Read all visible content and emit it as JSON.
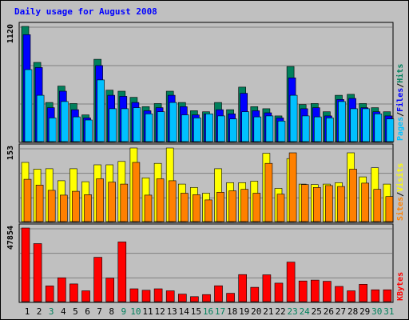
{
  "title": "Daily usage for August 2008",
  "colors": {
    "hits": "#00805c",
    "files": "#0000ff",
    "pages": "#00c0ff",
    "visits": "#ffff00",
    "sites": "#ff8000",
    "kbytes": "#ff0000",
    "weekday_label": "#000000",
    "weekend_label": "#00805c",
    "frame_bg": "#c0c0c0"
  },
  "legends": {
    "top": [
      {
        "text": "Pages",
        "color": "#00c0ff"
      },
      {
        "text": "/",
        "color": "#000000"
      },
      {
        "text": "Files",
        "color": "#0000ff"
      },
      {
        "text": "/",
        "color": "#000000"
      },
      {
        "text": "Hits",
        "color": "#00805c"
      }
    ],
    "mid": [
      {
        "text": "Sites",
        "color": "#ff8000"
      },
      {
        "text": "/",
        "color": "#000000"
      },
      {
        "text": "Visits",
        "color": "#ffff00"
      }
    ],
    "bot": [
      {
        "text": "KBytes",
        "color": "#ff0000"
      }
    ]
  },
  "chart_data": [
    {
      "type": "bar",
      "panel": "top",
      "ymax_label": "1120",
      "ylim": [
        0,
        1120
      ],
      "categories": [
        "1",
        "2",
        "3",
        "4",
        "5",
        "6",
        "7",
        "8",
        "9",
        "10",
        "11",
        "12",
        "13",
        "14",
        "15",
        "16",
        "17",
        "18",
        "19",
        "20",
        "21",
        "22",
        "23",
        "24",
        "25",
        "26",
        "27",
        "28",
        "29",
        "30",
        "31"
      ],
      "series": [
        {
          "name": "Hits",
          "values": [
            1120,
            770,
            380,
            540,
            370,
            260,
            800,
            500,
            490,
            430,
            340,
            370,
            490,
            380,
            300,
            290,
            380,
            310,
            530,
            340,
            320,
            250,
            730,
            360,
            370,
            290,
            450,
            460,
            370,
            330,
            290
          ]
        },
        {
          "name": "Files",
          "values": [
            1040,
            720,
            330,
            490,
            310,
            230,
            740,
            450,
            440,
            380,
            300,
            330,
            450,
            340,
            260,
            270,
            310,
            270,
            470,
            300,
            280,
            230,
            620,
            320,
            330,
            250,
            410,
            420,
            330,
            290,
            250
          ]
        },
        {
          "name": "Pages",
          "values": [
            700,
            450,
            230,
            390,
            240,
            210,
            600,
            320,
            320,
            330,
            270,
            290,
            380,
            260,
            230,
            270,
            250,
            220,
            290,
            240,
            250,
            200,
            450,
            250,
            240,
            230,
            390,
            320,
            320,
            270,
            220
          ]
        }
      ]
    },
    {
      "type": "bar",
      "panel": "mid",
      "ymax_label": "153",
      "ylim": [
        0,
        153
      ],
      "categories": [
        "1",
        "2",
        "3",
        "4",
        "5",
        "6",
        "7",
        "8",
        "9",
        "10",
        "11",
        "12",
        "13",
        "14",
        "15",
        "16",
        "17",
        "18",
        "19",
        "20",
        "21",
        "22",
        "23",
        "24",
        "25",
        "26",
        "27",
        "28",
        "29",
        "30",
        "31"
      ],
      "series": [
        {
          "name": "Visits",
          "values": [
            123,
            109,
            110,
            85,
            110,
            83,
            118,
            118,
            125,
            153,
            91,
            121,
            153,
            78,
            71,
            59,
            110,
            81,
            81,
            84,
            142,
            69,
            131,
            78,
            77,
            78,
            81,
            143,
            93,
            112,
            78
          ]
        },
        {
          "name": "Sites",
          "values": [
            88,
            76,
            65,
            55,
            63,
            56,
            89,
            82,
            78,
            123,
            55,
            89,
            85,
            59,
            56,
            45,
            61,
            64,
            67,
            59,
            121,
            57,
            143,
            77,
            71,
            75,
            73,
            109,
            80,
            67,
            52
          ]
        }
      ]
    },
    {
      "type": "bar",
      "panel": "bot",
      "ymax_label": "47854",
      "ylim": [
        0,
        47854
      ],
      "categories": [
        "1",
        "2",
        "3",
        "4",
        "5",
        "6",
        "7",
        "8",
        "9",
        "10",
        "11",
        "12",
        "13",
        "14",
        "15",
        "16",
        "17",
        "18",
        "19",
        "20",
        "21",
        "22",
        "23",
        "24",
        "25",
        "26",
        "27",
        "28",
        "29",
        "30",
        "31"
      ],
      "series": [
        {
          "name": "KBytes",
          "values": [
            47854,
            37700,
            10200,
            15500,
            11500,
            7000,
            28800,
            15300,
            38800,
            8300,
            7400,
            8300,
            7000,
            4900,
            3200,
            4600,
            10300,
            5400,
            17600,
            9300,
            17400,
            12000,
            25700,
            13400,
            14000,
            13200,
            9900,
            7000,
            11300,
            7700,
            7700
          ]
        }
      ]
    }
  ],
  "x_labels": [
    {
      "text": "1",
      "weekend": false
    },
    {
      "text": "2",
      "weekend": false
    },
    {
      "text": "3",
      "weekend": true
    },
    {
      "text": "4",
      "weekend": false
    },
    {
      "text": "5",
      "weekend": false
    },
    {
      "text": "6",
      "weekend": false
    },
    {
      "text": "7",
      "weekend": false
    },
    {
      "text": "8",
      "weekend": false
    },
    {
      "text": "9",
      "weekend": true
    },
    {
      "text": "10",
      "weekend": true
    },
    {
      "text": "11",
      "weekend": false
    },
    {
      "text": "12",
      "weekend": false
    },
    {
      "text": "13",
      "weekend": false
    },
    {
      "text": "14",
      "weekend": false
    },
    {
      "text": "15",
      "weekend": false
    },
    {
      "text": "16",
      "weekend": true
    },
    {
      "text": "17",
      "weekend": true
    },
    {
      "text": "18",
      "weekend": false
    },
    {
      "text": "19",
      "weekend": false
    },
    {
      "text": "20",
      "weekend": false
    },
    {
      "text": "21",
      "weekend": false
    },
    {
      "text": "22",
      "weekend": false
    },
    {
      "text": "23",
      "weekend": true
    },
    {
      "text": "24",
      "weekend": true
    },
    {
      "text": "25",
      "weekend": false
    },
    {
      "text": "26",
      "weekend": false
    },
    {
      "text": "27",
      "weekend": false
    },
    {
      "text": "28",
      "weekend": false
    },
    {
      "text": "29",
      "weekend": false
    },
    {
      "text": "30",
      "weekend": true
    },
    {
      "text": "31",
      "weekend": true
    }
  ]
}
